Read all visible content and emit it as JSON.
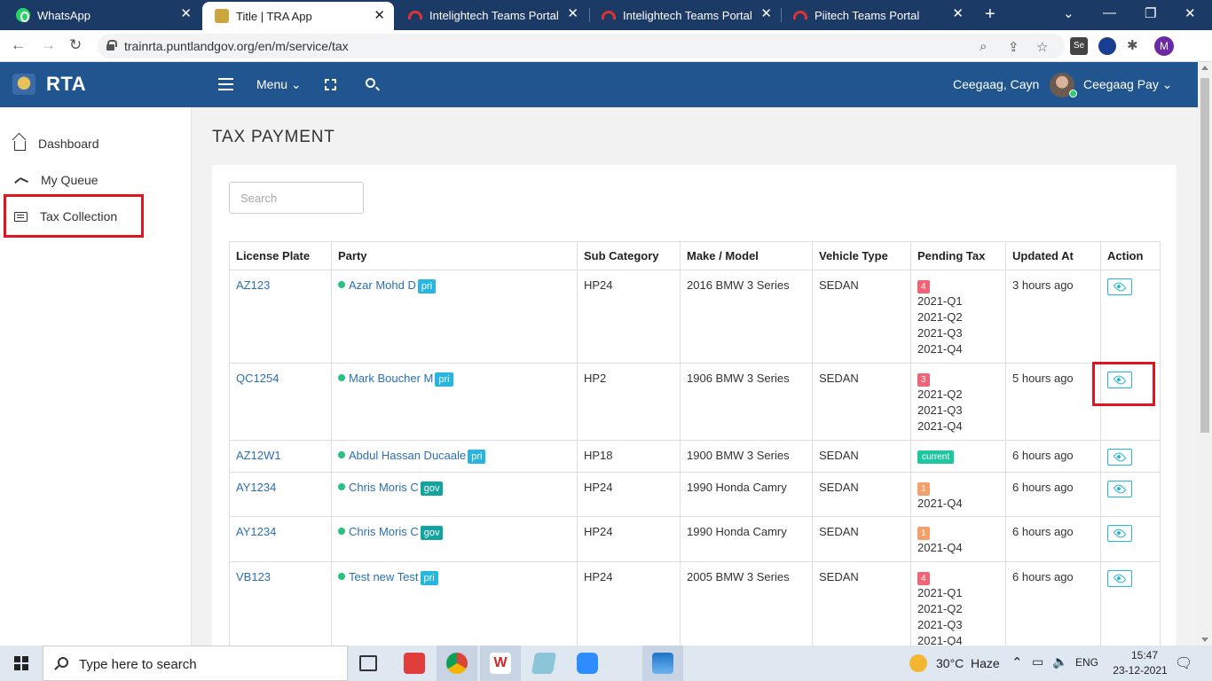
{
  "browser": {
    "tabs": [
      {
        "title": "WhatsApp",
        "icon": "whatsapp-icon"
      },
      {
        "title": "Title | TRA App",
        "icon": "crest-icon"
      },
      {
        "title": "Intelightech Teams Portal",
        "icon": "headset-icon"
      },
      {
        "title": "Intelightech Teams Portal",
        "icon": "headset-icon"
      },
      {
        "title": "Piitech Teams Portal",
        "icon": "headset-icon"
      }
    ],
    "url": "trainrta.puntlandgov.org/en/m/service/tax",
    "profile_initial": "M",
    "extension_label": "Se"
  },
  "header": {
    "brand": "RTA",
    "menu_label": "Menu",
    "org_name": "Ceegaag, Cayn",
    "user_name": "Ceegaag Pay"
  },
  "sidebar": {
    "items": [
      {
        "label": "Dashboard",
        "icon": "home-icon"
      },
      {
        "label": "My Queue",
        "icon": "trend-icon"
      },
      {
        "label": "Tax Collection",
        "icon": "list-icon"
      }
    ]
  },
  "main": {
    "title": "TAX PAYMENT",
    "search_placeholder": "Search",
    "columns": [
      "License Plate",
      "Party",
      "Sub Category",
      "Make / Model",
      "Vehicle Type",
      "Pending Tax",
      "Updated At",
      "Action"
    ],
    "rows": [
      {
        "plate": "AZ123",
        "party": "Azar Mohd D",
        "party_type": "pri",
        "sub_category": "HP24",
        "make_model": "2016 BMW 3 Series",
        "vehicle_type": "SEDAN",
        "pending_count": "4",
        "quarters": [
          "2021-Q1",
          "2021-Q2",
          "2021-Q3",
          "2021-Q4"
        ],
        "updated": "3 hours ago"
      },
      {
        "plate": "QC1254",
        "party": "Mark Boucher M",
        "party_type": "pri",
        "sub_category": "HP2",
        "make_model": "1906 BMW 3 Series",
        "vehicle_type": "SEDAN",
        "pending_count": "3",
        "quarters": [
          "2021-Q2",
          "2021-Q3",
          "2021-Q4"
        ],
        "updated": "5 hours ago"
      },
      {
        "plate": "AZ12W1",
        "party": "Abdul Hassan Ducaale",
        "party_type": "pri",
        "sub_category": "HP18",
        "make_model": "1900 BMW 3 Series",
        "vehicle_type": "SEDAN",
        "pending_status": "current",
        "updated": "6 hours ago"
      },
      {
        "plate": "AY1234",
        "party": "Chris Moris C",
        "party_type": "gov",
        "sub_category": "HP24",
        "make_model": "1990 Honda Camry",
        "vehicle_type": "SEDAN",
        "pending_count": "1",
        "quarters": [
          "2021-Q4"
        ],
        "updated": "6 hours ago"
      },
      {
        "plate": "AY1234",
        "party": "Chris Moris C",
        "party_type": "gov",
        "sub_category": "HP24",
        "make_model": "1990 Honda Camry",
        "vehicle_type": "SEDAN",
        "pending_count": "1",
        "quarters": [
          "2021-Q4"
        ],
        "updated": "6 hours ago"
      },
      {
        "plate": "VB123",
        "party": "Test new Test",
        "party_type": "pri",
        "sub_category": "HP24",
        "make_model": "2005 BMW 3 Series",
        "vehicle_type": "SEDAN",
        "pending_count": "4",
        "quarters": [
          "2021-Q1",
          "2021-Q2",
          "2021-Q3",
          "2021-Q4"
        ],
        "updated": "6 hours ago"
      }
    ]
  },
  "taskbar": {
    "search_text": "Type here to search",
    "temperature": "30°C",
    "weather": "Haze",
    "language": "ENG",
    "time": "15:47",
    "date": "23-12-2021"
  },
  "colors": {
    "header_bg": "#20558f",
    "highlight": "#e0141e",
    "tag_pri": "#26b6e0",
    "tag_gov": "#12a4a0",
    "badge_red": "#f06475",
    "badge_orange": "#f5a06a",
    "badge_current": "#1fc7a0",
    "link": "#2a6fb3"
  }
}
